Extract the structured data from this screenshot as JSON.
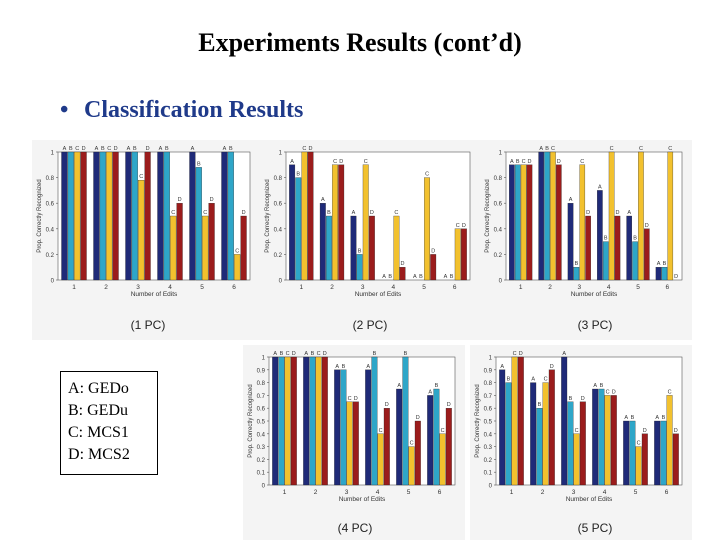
{
  "slide": {
    "title": "Experiments Results (cont’d)",
    "bullet": "Classification Results"
  },
  "legend": [
    {
      "key": "A",
      "label": "GEDo"
    },
    {
      "key": "B",
      "label": "GEDu"
    },
    {
      "key": "C",
      "label": "MCS1"
    },
    {
      "key": "D",
      "label": "MCS2"
    }
  ],
  "colors": {
    "A": "#1f2a78",
    "B": "#2ea6c8",
    "C": "#f2c12e",
    "D": "#9b1c1c"
  },
  "chart_data": [
    {
      "type": "bar",
      "caption": "(1 PC)",
      "xlabel": "Number of Edits",
      "ylabel": "Prop. Correctly Recognized",
      "categories": [
        "1",
        "2",
        "3",
        "4",
        "5",
        "6"
      ],
      "ylim": [
        0,
        1
      ],
      "yticks": [
        0,
        0.2,
        0.4,
        0.6,
        0.8,
        1
      ],
      "series": [
        {
          "name": "A",
          "values": [
            1,
            1,
            1,
            1,
            1,
            1
          ]
        },
        {
          "name": "B",
          "values": [
            1,
            1,
            1,
            1,
            0.88,
            1
          ]
        },
        {
          "name": "C",
          "values": [
            1,
            1,
            0.78,
            0.5,
            0.5,
            0.2
          ]
        },
        {
          "name": "D",
          "values": [
            1,
            1,
            1,
            0.6,
            0.6,
            0.5
          ]
        }
      ]
    },
    {
      "type": "bar",
      "caption": "(2 PC)",
      "xlabel": "Number of Edits",
      "ylabel": "Prop. Correctly Recognized",
      "categories": [
        "1",
        "2",
        "3",
        "4",
        "5",
        "6"
      ],
      "ylim": [
        0,
        1
      ],
      "yticks": [
        0,
        0.2,
        0.4,
        0.6,
        0.8,
        1
      ],
      "series": [
        {
          "name": "A",
          "values": [
            0.9,
            0.6,
            0.5,
            0,
            0,
            0
          ]
        },
        {
          "name": "B",
          "values": [
            0.8,
            0.5,
            0.2,
            0,
            0,
            0
          ]
        },
        {
          "name": "C",
          "values": [
            1,
            0.9,
            0.9,
            0.5,
            0.8,
            0.4
          ]
        },
        {
          "name": "D",
          "values": [
            1,
            0.9,
            0.5,
            0.1,
            0.2,
            0.4
          ]
        }
      ]
    },
    {
      "type": "bar",
      "caption": "(3 PC)",
      "xlabel": "Number of Edits",
      "ylabel": "Prop. Correctly Recognized",
      "categories": [
        "1",
        "2",
        "3",
        "4",
        "5",
        "6"
      ],
      "ylim": [
        0,
        1
      ],
      "yticks": [
        0,
        0.2,
        0.4,
        0.6,
        0.8,
        1
      ],
      "series": [
        {
          "name": "A",
          "values": [
            0.9,
            1,
            0.6,
            0.7,
            0.5,
            0.1
          ]
        },
        {
          "name": "B",
          "values": [
            0.9,
            1,
            0.1,
            0.3,
            0.3,
            0.1
          ]
        },
        {
          "name": "C",
          "values": [
            0.9,
            1,
            0.9,
            1,
            1,
            1
          ]
        },
        {
          "name": "D",
          "values": [
            0.9,
            0.9,
            0.5,
            0.5,
            0.4,
            0
          ]
        }
      ]
    },
    {
      "type": "bar",
      "caption": "(4 PC)",
      "xlabel": "Number of Edits",
      "ylabel": "Prop. Correctly Recognized",
      "categories": [
        "1",
        "2",
        "3",
        "4",
        "5",
        "6"
      ],
      "ylim": [
        0,
        1
      ],
      "yticks": [
        0,
        0.1,
        0.2,
        0.3,
        0.4,
        0.5,
        0.6,
        0.7,
        0.8,
        0.9,
        1
      ],
      "series": [
        {
          "name": "A",
          "values": [
            1,
            1,
            0.9,
            0.9,
            0.75,
            0.7
          ]
        },
        {
          "name": "B",
          "values": [
            1,
            1,
            0.9,
            1,
            1,
            0.75
          ]
        },
        {
          "name": "C",
          "values": [
            1,
            1,
            0.65,
            0.4,
            0.3,
            0.4
          ]
        },
        {
          "name": "D",
          "values": [
            1,
            1,
            0.65,
            0.6,
            0.5,
            0.6
          ]
        }
      ]
    },
    {
      "type": "bar",
      "caption": "(5 PC)",
      "xlabel": "Number of Edits",
      "ylabel": "Prop. Correctly Recognized",
      "categories": [
        "1",
        "2",
        "3",
        "4",
        "5",
        "6"
      ],
      "ylim": [
        0,
        1
      ],
      "yticks": [
        0,
        0.1,
        0.2,
        0.3,
        0.4,
        0.5,
        0.6,
        0.7,
        0.8,
        0.9,
        1
      ],
      "series": [
        {
          "name": "A",
          "values": [
            0.9,
            0.8,
            1,
            0.75,
            0.5,
            0.5
          ]
        },
        {
          "name": "B",
          "values": [
            0.8,
            0.6,
            0.65,
            0.75,
            0.5,
            0.5
          ]
        },
        {
          "name": "C",
          "values": [
            1,
            0.8,
            0.4,
            0.7,
            0.3,
            0.7
          ]
        },
        {
          "name": "D",
          "values": [
            1,
            0.9,
            0.65,
            0.7,
            0.4,
            0.4
          ]
        }
      ]
    }
  ]
}
